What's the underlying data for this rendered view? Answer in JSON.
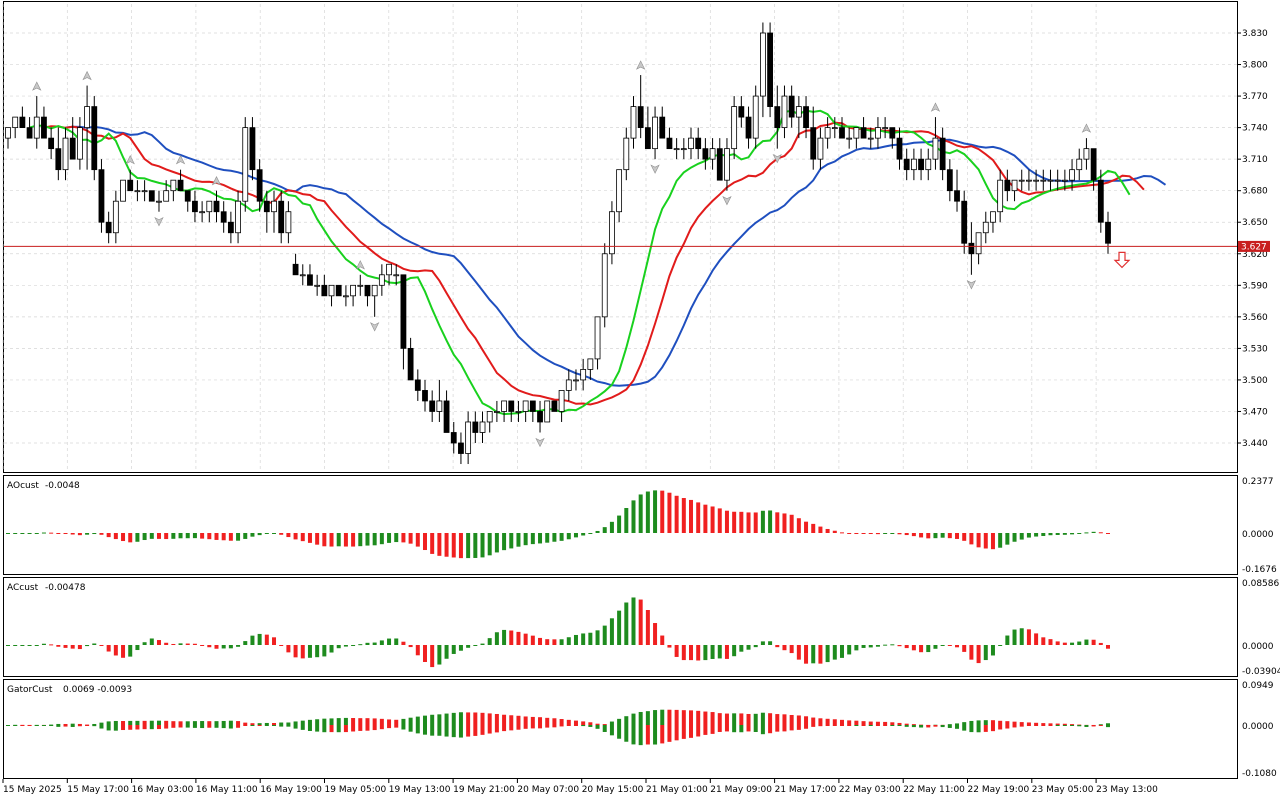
{
  "chart_data": {
    "type": "candlestick",
    "current_price": 3.627,
    "current_price_label": "3.627",
    "colors": {
      "alligator_jaw": "#1f4fbf",
      "alligator_teeth": "#e11b1b",
      "alligator_lips": "#19d11e",
      "bull": "#ffffff",
      "bear": "#000000",
      "up_bar": "#1e8b1e",
      "down_bar": "#f02020",
      "price_line": "#c81e1e"
    },
    "price_ticks": [
      "3.830",
      "3.800",
      "3.770",
      "3.740",
      "3.710",
      "3.680",
      "3.650",
      "3.620",
      "3.590",
      "3.560",
      "3.530",
      "3.500",
      "3.470",
      "3.440"
    ],
    "time_labels": [
      "15 May 2025",
      "15 May 17:00",
      "16 May 03:00",
      "16 May 11:00",
      "16 May 19:00",
      "19 May 05:00",
      "19 May 13:00",
      "19 May 21:00",
      "20 May 07:00",
      "20 May 15:00",
      "21 May 01:00",
      "21 May 09:00",
      "21 May 17:00",
      "22 May 03:00",
      "22 May 11:00",
      "22 May 19:00",
      "23 May 05:00",
      "23 May 13:00"
    ],
    "candles": [
      [
        3.73,
        3.74,
        3.72,
        3.74
      ],
      [
        3.74,
        3.75,
        3.73,
        3.75
      ],
      [
        3.75,
        3.76,
        3.74,
        3.74
      ],
      [
        3.74,
        3.75,
        3.73,
        3.73
      ],
      [
        3.73,
        3.77,
        3.72,
        3.75
      ],
      [
        3.75,
        3.76,
        3.73,
        3.73
      ],
      [
        3.73,
        3.74,
        3.71,
        3.72
      ],
      [
        3.72,
        3.74,
        3.69,
        3.7
      ],
      [
        3.7,
        3.74,
        3.69,
        3.73
      ],
      [
        3.73,
        3.75,
        3.71,
        3.71
      ],
      [
        3.71,
        3.75,
        3.7,
        3.74
      ],
      [
        3.74,
        3.78,
        3.7,
        3.76
      ],
      [
        3.76,
        3.77,
        3.69,
        3.7
      ],
      [
        3.7,
        3.71,
        3.64,
        3.65
      ],
      [
        3.65,
        3.66,
        3.63,
        3.64
      ],
      [
        3.64,
        3.68,
        3.63,
        3.67
      ],
      [
        3.67,
        3.69,
        3.67,
        3.69
      ],
      [
        3.69,
        3.7,
        3.68,
        3.68
      ],
      [
        3.68,
        3.69,
        3.67,
        3.68
      ],
      [
        3.68,
        3.69,
        3.67,
        3.68
      ],
      [
        3.68,
        3.68,
        3.67,
        3.67
      ],
      [
        3.67,
        3.68,
        3.66,
        3.67
      ],
      [
        3.67,
        3.69,
        3.67,
        3.68
      ],
      [
        3.68,
        3.69,
        3.67,
        3.69
      ],
      [
        3.69,
        3.7,
        3.68,
        3.68
      ],
      [
        3.68,
        3.68,
        3.66,
        3.67
      ],
      [
        3.67,
        3.68,
        3.65,
        3.66
      ],
      [
        3.66,
        3.67,
        3.65,
        3.66
      ],
      [
        3.66,
        3.67,
        3.65,
        3.67
      ],
      [
        3.67,
        3.68,
        3.65,
        3.66
      ],
      [
        3.66,
        3.67,
        3.64,
        3.65
      ],
      [
        3.65,
        3.66,
        3.63,
        3.64
      ],
      [
        3.64,
        3.68,
        3.63,
        3.67
      ],
      [
        3.67,
        3.75,
        3.66,
        3.74
      ],
      [
        3.74,
        3.75,
        3.69,
        3.7
      ],
      [
        3.7,
        3.71,
        3.66,
        3.67
      ],
      [
        3.67,
        3.68,
        3.64,
        3.66
      ],
      [
        3.66,
        3.68,
        3.64,
        3.67
      ],
      [
        3.67,
        3.68,
        3.63,
        3.64
      ],
      [
        3.64,
        3.67,
        3.63,
        3.66
      ],
      [
        3.61,
        3.62,
        3.6,
        3.6
      ],
      [
        3.6,
        3.61,
        3.59,
        3.6
      ],
      [
        3.6,
        3.61,
        3.59,
        3.59
      ],
      [
        3.59,
        3.6,
        3.58,
        3.59
      ],
      [
        3.59,
        3.6,
        3.58,
        3.58
      ],
      [
        3.58,
        3.59,
        3.57,
        3.59
      ],
      [
        3.59,
        3.59,
        3.58,
        3.58
      ],
      [
        3.58,
        3.59,
        3.57,
        3.58
      ],
      [
        3.58,
        3.59,
        3.57,
        3.59
      ],
      [
        3.59,
        3.6,
        3.58,
        3.59
      ],
      [
        3.59,
        3.59,
        3.57,
        3.58
      ],
      [
        3.58,
        3.59,
        3.56,
        3.59
      ],
      [
        3.59,
        3.61,
        3.58,
        3.6
      ],
      [
        3.6,
        3.61,
        3.59,
        3.61
      ],
      [
        3.6,
        3.61,
        3.59,
        3.6
      ],
      [
        3.6,
        3.6,
        3.51,
        3.53
      ],
      [
        3.53,
        3.54,
        3.5,
        3.5
      ],
      [
        3.5,
        3.51,
        3.48,
        3.49
      ],
      [
        3.49,
        3.5,
        3.47,
        3.48
      ],
      [
        3.48,
        3.49,
        3.46,
        3.47
      ],
      [
        3.47,
        3.5,
        3.46,
        3.48
      ],
      [
        3.48,
        3.49,
        3.45,
        3.45
      ],
      [
        3.45,
        3.46,
        3.43,
        3.44
      ],
      [
        3.44,
        3.45,
        3.42,
        3.43
      ],
      [
        3.43,
        3.47,
        3.42,
        3.46
      ],
      [
        3.46,
        3.47,
        3.44,
        3.45
      ],
      [
        3.45,
        3.47,
        3.44,
        3.46
      ],
      [
        3.46,
        3.47,
        3.45,
        3.47
      ],
      [
        3.47,
        3.48,
        3.46,
        3.47
      ],
      [
        3.47,
        3.48,
        3.46,
        3.48
      ],
      [
        3.48,
        3.48,
        3.46,
        3.47
      ],
      [
        3.47,
        3.48,
        3.46,
        3.47
      ],
      [
        3.47,
        3.48,
        3.46,
        3.48
      ],
      [
        3.48,
        3.48,
        3.46,
        3.47
      ],
      [
        3.47,
        3.48,
        3.45,
        3.46
      ],
      [
        3.46,
        3.48,
        3.46,
        3.48
      ],
      [
        3.48,
        3.48,
        3.47,
        3.47
      ],
      [
        3.47,
        3.49,
        3.46,
        3.49
      ],
      [
        3.49,
        3.51,
        3.48,
        3.5
      ],
      [
        3.5,
        3.51,
        3.49,
        3.5
      ],
      [
        3.5,
        3.52,
        3.49,
        3.51
      ],
      [
        3.51,
        3.52,
        3.5,
        3.52
      ],
      [
        3.52,
        3.56,
        3.51,
        3.56
      ],
      [
        3.56,
        3.63,
        3.55,
        3.62
      ],
      [
        3.62,
        3.67,
        3.61,
        3.66
      ],
      [
        3.66,
        3.7,
        3.65,
        3.7
      ],
      [
        3.7,
        3.74,
        3.69,
        3.73
      ],
      [
        3.73,
        3.77,
        3.72,
        3.76
      ],
      [
        3.76,
        3.79,
        3.73,
        3.74
      ],
      [
        3.74,
        3.76,
        3.72,
        3.72
      ],
      [
        3.72,
        3.76,
        3.71,
        3.75
      ],
      [
        3.75,
        3.76,
        3.73,
        3.73
      ],
      [
        3.73,
        3.74,
        3.72,
        3.72
      ],
      [
        3.72,
        3.73,
        3.71,
        3.72
      ],
      [
        3.72,
        3.73,
        3.71,
        3.72
      ],
      [
        3.72,
        3.74,
        3.71,
        3.73
      ],
      [
        3.73,
        3.74,
        3.71,
        3.72
      ],
      [
        3.72,
        3.73,
        3.7,
        3.71
      ],
      [
        3.71,
        3.73,
        3.7,
        3.72
      ],
      [
        3.72,
        3.73,
        3.69,
        3.69
      ],
      [
        3.69,
        3.73,
        3.68,
        3.72
      ],
      [
        3.72,
        3.77,
        3.71,
        3.76
      ],
      [
        3.76,
        3.77,
        3.74,
        3.75
      ],
      [
        3.75,
        3.76,
        3.72,
        3.73
      ],
      [
        3.73,
        3.78,
        3.72,
        3.77
      ],
      [
        3.77,
        3.84,
        3.75,
        3.83
      ],
      [
        3.83,
        3.84,
        3.75,
        3.76
      ],
      [
        3.76,
        3.78,
        3.72,
        3.74
      ],
      [
        3.74,
        3.78,
        3.73,
        3.77
      ],
      [
        3.77,
        3.78,
        3.74,
        3.75
      ],
      [
        3.75,
        3.77,
        3.73,
        3.76
      ],
      [
        3.76,
        3.77,
        3.73,
        3.74
      ],
      [
        3.74,
        3.76,
        3.7,
        3.71
      ],
      [
        3.71,
        3.74,
        3.7,
        3.73
      ],
      [
        3.73,
        3.75,
        3.72,
        3.74
      ],
      [
        3.74,
        3.75,
        3.73,
        3.74
      ],
      [
        3.74,
        3.75,
        3.73,
        3.73
      ],
      [
        3.73,
        3.74,
        3.72,
        3.73
      ],
      [
        3.73,
        3.74,
        3.72,
        3.74
      ],
      [
        3.74,
        3.75,
        3.73,
        3.73
      ],
      [
        3.73,
        3.74,
        3.72,
        3.73
      ],
      [
        3.73,
        3.75,
        3.72,
        3.74
      ],
      [
        3.74,
        3.75,
        3.73,
        3.74
      ],
      [
        3.74,
        3.74,
        3.72,
        3.73
      ],
      [
        3.73,
        3.74,
        3.7,
        3.71
      ],
      [
        3.71,
        3.72,
        3.69,
        3.7
      ],
      [
        3.7,
        3.72,
        3.69,
        3.71
      ],
      [
        3.71,
        3.72,
        3.69,
        3.7
      ],
      [
        3.7,
        3.72,
        3.69,
        3.71
      ],
      [
        3.71,
        3.75,
        3.7,
        3.73
      ],
      [
        3.73,
        3.74,
        3.69,
        3.7
      ],
      [
        3.7,
        3.71,
        3.67,
        3.68
      ],
      [
        3.68,
        3.7,
        3.66,
        3.67
      ],
      [
        3.67,
        3.68,
        3.62,
        3.63
      ],
      [
        3.63,
        3.65,
        3.6,
        3.62
      ],
      [
        3.62,
        3.64,
        3.61,
        3.64
      ],
      [
        3.64,
        3.66,
        3.63,
        3.65
      ],
      [
        3.65,
        3.66,
        3.64,
        3.66
      ],
      [
        3.66,
        3.7,
        3.65,
        3.69
      ],
      [
        3.69,
        3.7,
        3.67,
        3.68
      ],
      [
        3.68,
        3.69,
        3.67,
        3.69
      ],
      [
        3.69,
        3.7,
        3.68,
        3.69
      ],
      [
        3.69,
        3.7,
        3.68,
        3.69
      ],
      [
        3.69,
        3.7,
        3.68,
        3.69
      ],
      [
        3.69,
        3.7,
        3.68,
        3.69
      ],
      [
        3.69,
        3.7,
        3.68,
        3.69
      ],
      [
        3.69,
        3.7,
        3.68,
        3.69
      ],
      [
        3.69,
        3.7,
        3.68,
        3.69
      ],
      [
        3.69,
        3.71,
        3.68,
        3.7
      ],
      [
        3.7,
        3.72,
        3.69,
        3.71
      ],
      [
        3.71,
        3.73,
        3.7,
        3.72
      ],
      [
        3.72,
        3.72,
        3.68,
        3.69
      ],
      [
        3.69,
        3.7,
        3.64,
        3.65
      ],
      [
        3.65,
        3.66,
        3.62,
        3.63
      ]
    ],
    "indicator_panels": [
      {
        "name": "AOcust",
        "value": "-0.0048",
        "ticks": [
          "0.2377",
          "0.0000",
          "-0.1676"
        ],
        "range": [
          -0.1676,
          0.2377
        ]
      },
      {
        "name": "ACcust",
        "value": "-0.00478",
        "ticks": [
          "0.08586",
          "0.0000",
          "-0.03904"
        ],
        "range": [
          -0.03904,
          0.08586
        ]
      },
      {
        "name": "GatorCust",
        "value": "0.0069 -0.0093",
        "ticks": [
          "0.0949",
          "0.0000",
          "-0.1080"
        ],
        "range": [
          -0.108,
          0.0949
        ]
      }
    ]
  }
}
